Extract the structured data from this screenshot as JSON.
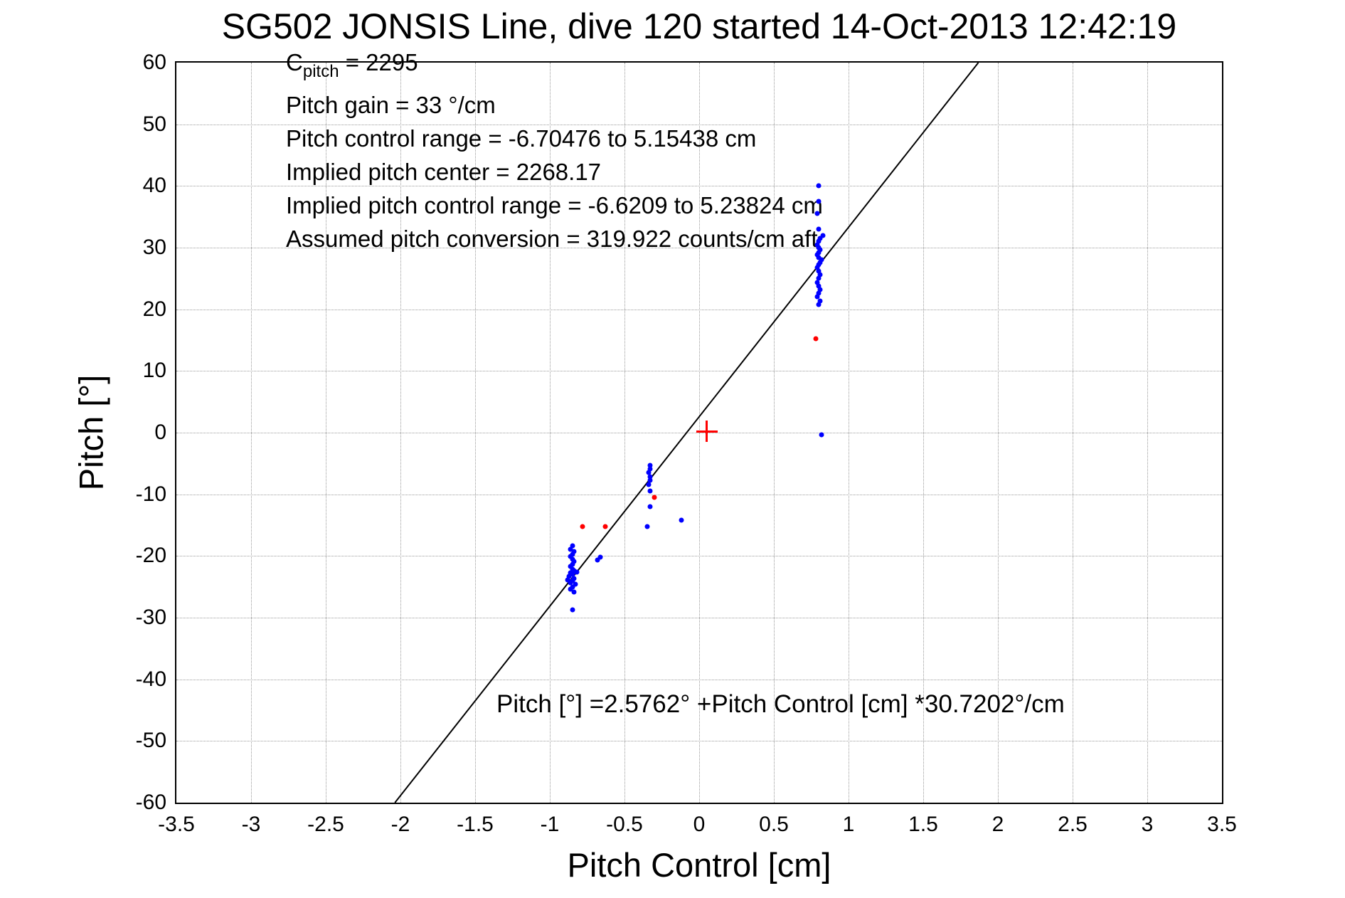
{
  "chart_data": {
    "type": "scatter",
    "title": "SG502 JONSIS Line, dive 120 started 14-Oct-2013 12:42:19",
    "xlabel": "Pitch Control [cm]",
    "ylabel": "Pitch [°]",
    "xlim": [
      -3.5,
      3.5
    ],
    "ylim": [
      -60,
      60
    ],
    "grid": true,
    "legend": false,
    "xticks": [
      {
        "v": -3.5,
        "label": "-3.5"
      },
      {
        "v": -3,
        "label": "-3"
      },
      {
        "v": -2.5,
        "label": "-2.5"
      },
      {
        "v": -2,
        "label": "-2"
      },
      {
        "v": -1.5,
        "label": "-1.5"
      },
      {
        "v": -1,
        "label": "-1"
      },
      {
        "v": -0.5,
        "label": "-0.5"
      },
      {
        "v": 0,
        "label": "0"
      },
      {
        "v": 0.5,
        "label": "0.5"
      },
      {
        "v": 1,
        "label": "1"
      },
      {
        "v": 1.5,
        "label": "1.5"
      },
      {
        "v": 2,
        "label": "2"
      },
      {
        "v": 2.5,
        "label": "2.5"
      },
      {
        "v": 3,
        "label": "3"
      },
      {
        "v": 3.5,
        "label": "3.5"
      }
    ],
    "yticks": [
      {
        "v": -60,
        "label": "-60"
      },
      {
        "v": -50,
        "label": "-50"
      },
      {
        "v": -40,
        "label": "-40"
      },
      {
        "v": -30,
        "label": "-30"
      },
      {
        "v": -20,
        "label": "-20"
      },
      {
        "v": -10,
        "label": "-10"
      },
      {
        "v": 0,
        "label": "0"
      },
      {
        "v": 10,
        "label": "10"
      },
      {
        "v": 20,
        "label": "20"
      },
      {
        "v": 30,
        "label": "30"
      },
      {
        "v": 40,
        "label": "40"
      },
      {
        "v": 50,
        "label": "50"
      },
      {
        "v": 60,
        "label": "60"
      }
    ],
    "series": [
      {
        "name": "pitch-samples",
        "color": "#0000ff",
        "marker": "dot",
        "size": 7,
        "points": [
          [
            -0.85,
            -18.3
          ],
          [
            -0.86,
            -18.9
          ],
          [
            -0.84,
            -19.3
          ],
          [
            -0.85,
            -19.7
          ],
          [
            -0.86,
            -20.1
          ],
          [
            -0.85,
            -20.5
          ],
          [
            -0.84,
            -20.9
          ],
          [
            -0.85,
            -21.3
          ],
          [
            -0.86,
            -21.7
          ],
          [
            -0.85,
            -22.1
          ],
          [
            -0.84,
            -22.4
          ],
          [
            -0.86,
            -22.7
          ],
          [
            -0.85,
            -23.0
          ],
          [
            -0.87,
            -23.3
          ],
          [
            -0.84,
            -23.6
          ],
          [
            -0.85,
            -24.0
          ],
          [
            -0.86,
            -24.3
          ],
          [
            -0.83,
            -24.6
          ],
          [
            -0.85,
            -25.0
          ],
          [
            -0.86,
            -25.4
          ],
          [
            -0.84,
            -25.8
          ],
          [
            -0.82,
            -22.6
          ],
          [
            -0.88,
            -23.9
          ],
          [
            -0.85,
            -28.7
          ],
          [
            -0.68,
            -20.6
          ],
          [
            -0.66,
            -20.2
          ],
          [
            -0.33,
            -5.3
          ],
          [
            -0.33,
            -5.9
          ],
          [
            -0.34,
            -6.5
          ],
          [
            -0.33,
            -7.1
          ],
          [
            -0.33,
            -7.7
          ],
          [
            -0.34,
            -8.4
          ],
          [
            -0.33,
            -9.5
          ],
          [
            -0.33,
            -12.0
          ],
          [
            -0.35,
            -15.2
          ],
          [
            -0.12,
            -14.2
          ],
          [
            0.82,
            -0.3
          ],
          [
            0.8,
            20.8
          ],
          [
            0.81,
            21.4
          ],
          [
            0.79,
            22.0
          ],
          [
            0.8,
            22.6
          ],
          [
            0.81,
            23.2
          ],
          [
            0.8,
            23.8
          ],
          [
            0.79,
            24.4
          ],
          [
            0.8,
            25.0
          ],
          [
            0.81,
            25.6
          ],
          [
            0.8,
            26.2
          ],
          [
            0.79,
            26.8
          ],
          [
            0.8,
            27.2
          ],
          [
            0.81,
            27.6
          ],
          [
            0.82,
            28.0
          ],
          [
            0.8,
            28.4
          ],
          [
            0.79,
            28.8
          ],
          [
            0.8,
            29.2
          ],
          [
            0.81,
            29.6
          ],
          [
            0.8,
            30.0
          ],
          [
            0.79,
            30.5
          ],
          [
            0.8,
            31.0
          ],
          [
            0.81,
            31.5
          ],
          [
            0.83,
            32.0
          ],
          [
            0.8,
            33.0
          ],
          [
            0.79,
            35.5
          ],
          [
            0.8,
            37.5
          ],
          [
            0.8,
            40.0
          ]
        ]
      },
      {
        "name": "flagged-samples",
        "color": "#ff0000",
        "marker": "dot",
        "size": 7,
        "points": [
          [
            -0.78,
            -15.2
          ],
          [
            -0.63,
            -15.2
          ],
          [
            -0.3,
            -10.5
          ],
          [
            0.78,
            15.2
          ]
        ]
      },
      {
        "name": "implied-center",
        "color": "#ff0000",
        "marker": "plus",
        "size": 30,
        "points": [
          [
            0.05,
            0.2
          ]
        ]
      }
    ],
    "fit_line": {
      "color": "#000000",
      "slope": 30.7202,
      "intercept": 2.5762
    },
    "annotations": {
      "stats_lines": [
        {
          "segments": [
            {
              "text": "C"
            },
            {
              "text": "pitch",
              "subscript": true
            },
            {
              "text": " = 2295"
            }
          ]
        },
        {
          "segments": [
            {
              "text": "Pitch gain = 33 °/cm"
            }
          ]
        },
        {
          "segments": [
            {
              "text": "Pitch control range = -6.70476 to 5.15438 cm"
            }
          ]
        },
        {
          "segments": [
            {
              "text": "Implied pitch center = 2268.17"
            }
          ]
        },
        {
          "segments": [
            {
              "text": "Implied pitch control range = -6.6209 to 5.23824 cm"
            }
          ]
        },
        {
          "segments": [
            {
              "text": "Assumed pitch conversion = 319.922 counts/cm aft"
            }
          ]
        }
      ],
      "equation": "Pitch [°] =2.5762° +Pitch Control [cm] *30.7202°/cm"
    }
  }
}
